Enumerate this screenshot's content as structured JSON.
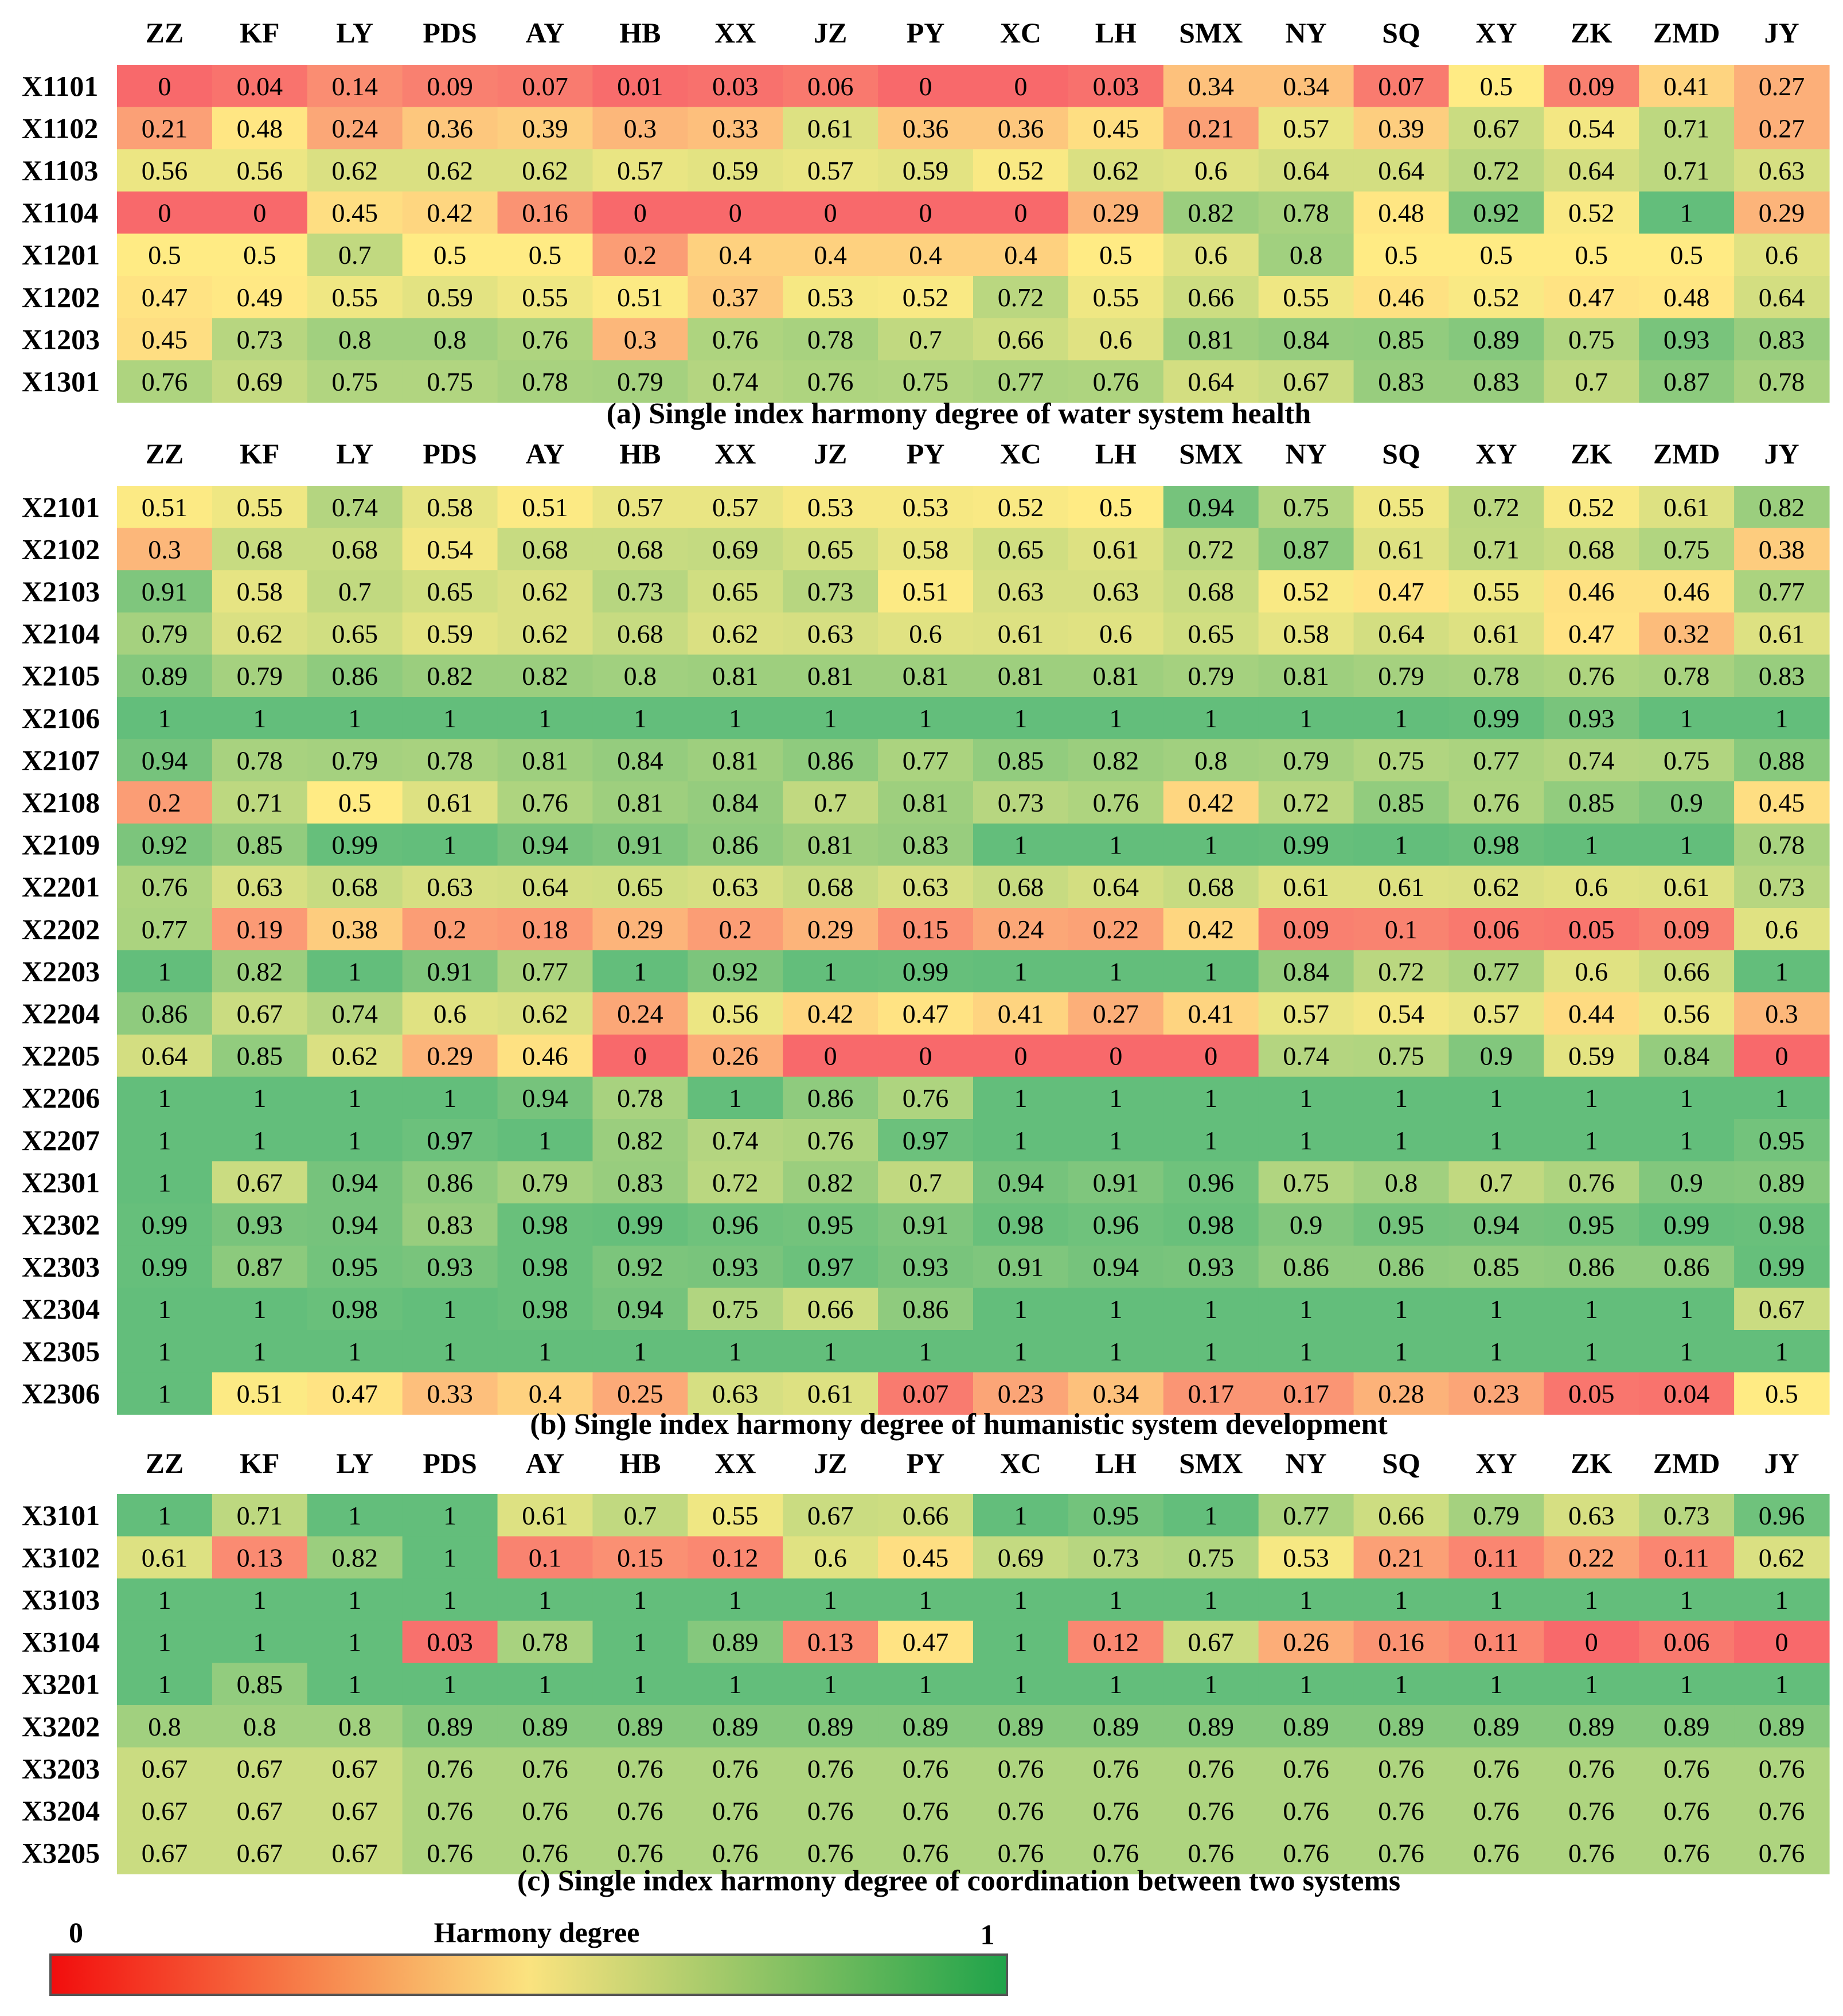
{
  "columns": [
    "ZZ",
    "KF",
    "LY",
    "PDS",
    "AY",
    "HB",
    "XX",
    "JZ",
    "PY",
    "XC",
    "LH",
    "SMX",
    "NY",
    "SQ",
    "XY",
    "ZK",
    "ZMD",
    "JY"
  ],
  "legend": {
    "min_label": "0",
    "max_label": "1",
    "title": "Harmony degree",
    "colors": [
      "#f20d0d",
      "#fbe37f",
      "#1fa34a"
    ]
  },
  "cell_colors": {
    "low": "#f8696b",
    "mid": "#ffeb84",
    "high": "#63be7b"
  },
  "chart_data": [
    {
      "type": "heatmap",
      "title": "(a) Single index harmony degree of water system health",
      "rows": [
        "X1101",
        "X1102",
        "X1103",
        "X1104",
        "X1201",
        "X1202",
        "X1203",
        "X1301"
      ],
      "values": [
        [
          0,
          0.04,
          0.14,
          0.09,
          0.07,
          0.01,
          0.03,
          0.06,
          0,
          0,
          0.03,
          0.34,
          0.34,
          0.07,
          0.5,
          0.09,
          0.41,
          0.27
        ],
        [
          0.21,
          0.48,
          0.24,
          0.36,
          0.39,
          0.3,
          0.33,
          0.61,
          0.36,
          0.36,
          0.45,
          0.21,
          0.57,
          0.39,
          0.67,
          0.54,
          0.71,
          0.27
        ],
        [
          0.56,
          0.56,
          0.62,
          0.62,
          0.62,
          0.57,
          0.59,
          0.57,
          0.59,
          0.52,
          0.62,
          0.6,
          0.64,
          0.64,
          0.72,
          0.64,
          0.71,
          0.63
        ],
        [
          0,
          0,
          0.45,
          0.42,
          0.16,
          0,
          0,
          0,
          0,
          0,
          0.29,
          0.82,
          0.78,
          0.48,
          0.92,
          0.52,
          1,
          0.29
        ],
        [
          0.5,
          0.5,
          0.7,
          0.5,
          0.5,
          0.2,
          0.4,
          0.4,
          0.4,
          0.4,
          0.5,
          0.6,
          0.8,
          0.5,
          0.5,
          0.5,
          0.5,
          0.6
        ],
        [
          0.47,
          0.49,
          0.55,
          0.59,
          0.55,
          0.51,
          0.37,
          0.53,
          0.52,
          0.72,
          0.55,
          0.66,
          0.55,
          0.46,
          0.52,
          0.47,
          0.48,
          0.64
        ],
        [
          0.45,
          0.73,
          0.8,
          0.8,
          0.76,
          0.3,
          0.76,
          0.78,
          0.7,
          0.66,
          0.6,
          0.81,
          0.84,
          0.85,
          0.89,
          0.75,
          0.93,
          0.83
        ],
        [
          0.76,
          0.69,
          0.75,
          0.75,
          0.78,
          0.79,
          0.74,
          0.76,
          0.75,
          0.77,
          0.76,
          0.64,
          0.67,
          0.83,
          0.83,
          0.7,
          0.87,
          0.78
        ]
      ]
    },
    {
      "type": "heatmap",
      "title": "(b)  Single index harmony degree of humanistic system development",
      "rows": [
        "X2101",
        "X2102",
        "X2103",
        "X2104",
        "X2105",
        "X2106",
        "X2107",
        "X2108",
        "X2109",
        "X2201",
        "X2202",
        "X2203",
        "X2204",
        "X2205",
        "X2206",
        "X2207",
        "X2301",
        "X2302",
        "X2303",
        "X2304",
        "X2305",
        "X2306"
      ],
      "values": [
        [
          0.51,
          0.55,
          0.74,
          0.58,
          0.51,
          0.57,
          0.57,
          0.53,
          0.53,
          0.52,
          0.5,
          0.94,
          0.75,
          0.55,
          0.72,
          0.52,
          0.61,
          0.82
        ],
        [
          0.3,
          0.68,
          0.68,
          0.54,
          0.68,
          0.68,
          0.69,
          0.65,
          0.58,
          0.65,
          0.61,
          0.72,
          0.87,
          0.61,
          0.71,
          0.68,
          0.75,
          0.38
        ],
        [
          0.91,
          0.58,
          0.7,
          0.65,
          0.62,
          0.73,
          0.65,
          0.73,
          0.51,
          0.63,
          0.63,
          0.68,
          0.52,
          0.47,
          0.55,
          0.46,
          0.46,
          0.77
        ],
        [
          0.79,
          0.62,
          0.65,
          0.59,
          0.62,
          0.68,
          0.62,
          0.63,
          0.6,
          0.61,
          0.6,
          0.65,
          0.58,
          0.64,
          0.61,
          0.47,
          0.32,
          0.61
        ],
        [
          0.89,
          0.79,
          0.86,
          0.82,
          0.82,
          0.8,
          0.81,
          0.81,
          0.81,
          0.81,
          0.81,
          0.79,
          0.81,
          0.79,
          0.78,
          0.76,
          0.78,
          0.83
        ],
        [
          1,
          1,
          1,
          1,
          1,
          1,
          1,
          1,
          1,
          1,
          1,
          1,
          1,
          1,
          0.99,
          0.93,
          1,
          1
        ],
        [
          0.94,
          0.78,
          0.79,
          0.78,
          0.81,
          0.84,
          0.81,
          0.86,
          0.77,
          0.85,
          0.82,
          0.8,
          0.79,
          0.75,
          0.77,
          0.74,
          0.75,
          0.88
        ],
        [
          0.2,
          0.71,
          0.5,
          0.61,
          0.76,
          0.81,
          0.84,
          0.7,
          0.81,
          0.73,
          0.76,
          0.42,
          0.72,
          0.85,
          0.76,
          0.85,
          0.9,
          0.45
        ],
        [
          0.92,
          0.85,
          0.99,
          1,
          0.94,
          0.91,
          0.86,
          0.81,
          0.83,
          1,
          1,
          1,
          0.99,
          1,
          0.98,
          1,
          1,
          0.78
        ],
        [
          0.76,
          0.63,
          0.68,
          0.63,
          0.64,
          0.65,
          0.63,
          0.68,
          0.63,
          0.68,
          0.64,
          0.68,
          0.61,
          0.61,
          0.62,
          0.6,
          0.61,
          0.73
        ],
        [
          0.77,
          0.19,
          0.38,
          0.2,
          0.18,
          0.29,
          0.2,
          0.29,
          0.15,
          0.24,
          0.22,
          0.42,
          0.09,
          0.1,
          0.06,
          0.05,
          0.09,
          0.6
        ],
        [
          1,
          0.82,
          1,
          0.91,
          0.77,
          1,
          0.92,
          1,
          0.99,
          1,
          1,
          1,
          0.84,
          0.72,
          0.77,
          0.6,
          0.66,
          1
        ],
        [
          0.86,
          0.67,
          0.74,
          0.6,
          0.62,
          0.24,
          0.56,
          0.42,
          0.47,
          0.41,
          0.27,
          0.41,
          0.57,
          0.54,
          0.57,
          0.44,
          0.56,
          0.3
        ],
        [
          0.64,
          0.85,
          0.62,
          0.29,
          0.46,
          0,
          0.26,
          0,
          0,
          0,
          0,
          0,
          0.74,
          0.75,
          0.9,
          0.59,
          0.84,
          0
        ],
        [
          1,
          1,
          1,
          1,
          0.94,
          0.78,
          1,
          0.86,
          0.76,
          1,
          1,
          1,
          1,
          1,
          1,
          1,
          1,
          1
        ],
        [
          1,
          1,
          1,
          0.97,
          1,
          0.82,
          0.74,
          0.76,
          0.97,
          1,
          1,
          1,
          1,
          1,
          1,
          1,
          1,
          0.95
        ],
        [
          1,
          0.67,
          0.94,
          0.86,
          0.79,
          0.83,
          0.72,
          0.82,
          0.7,
          0.94,
          0.91,
          0.96,
          0.75,
          0.8,
          0.7,
          0.76,
          0.9,
          0.89
        ],
        [
          0.99,
          0.93,
          0.94,
          0.83,
          0.98,
          0.99,
          0.96,
          0.95,
          0.91,
          0.98,
          0.96,
          0.98,
          0.9,
          0.95,
          0.94,
          0.95,
          0.99,
          0.98
        ],
        [
          0.99,
          0.87,
          0.95,
          0.93,
          0.98,
          0.92,
          0.93,
          0.97,
          0.93,
          0.91,
          0.94,
          0.93,
          0.86,
          0.86,
          0.85,
          0.86,
          0.86,
          0.99
        ],
        [
          1,
          1,
          0.98,
          1,
          0.98,
          0.94,
          0.75,
          0.66,
          0.86,
          1,
          1,
          1,
          1,
          1,
          1,
          1,
          1,
          0.67
        ],
        [
          1,
          1,
          1,
          1,
          1,
          1,
          1,
          1,
          1,
          1,
          1,
          1,
          1,
          1,
          1,
          1,
          1,
          1
        ],
        [
          1,
          0.51,
          0.47,
          0.33,
          0.4,
          0.25,
          0.63,
          0.61,
          0.07,
          0.23,
          0.34,
          0.17,
          0.17,
          0.28,
          0.23,
          0.05,
          0.04,
          0.5
        ]
      ]
    },
    {
      "type": "heatmap",
      "title": "(c) Single index harmony degree of coordination between two systems",
      "rows": [
        "X3101",
        "X3102",
        "X3103",
        "X3104",
        "X3201",
        "X3202",
        "X3203",
        "X3204",
        "X3205"
      ],
      "values": [
        [
          1,
          0.71,
          1,
          1,
          0.61,
          0.7,
          0.55,
          0.67,
          0.66,
          1,
          0.95,
          1,
          0.77,
          0.66,
          0.79,
          0.63,
          0.73,
          0.96
        ],
        [
          0.61,
          0.13,
          0.82,
          1,
          0.1,
          0.15,
          0.12,
          0.6,
          0.45,
          0.69,
          0.73,
          0.75,
          0.53,
          0.21,
          0.11,
          0.22,
          0.11,
          0.62
        ],
        [
          1,
          1,
          1,
          1,
          1,
          1,
          1,
          1,
          1,
          1,
          1,
          1,
          1,
          1,
          1,
          1,
          1,
          1
        ],
        [
          1,
          1,
          1,
          0.03,
          0.78,
          1,
          0.89,
          0.13,
          0.47,
          1,
          0.12,
          0.67,
          0.26,
          0.16,
          0.11,
          0,
          0.06,
          0
        ],
        [
          1,
          0.85,
          1,
          1,
          1,
          1,
          1,
          1,
          1,
          1,
          1,
          1,
          1,
          1,
          1,
          1,
          1,
          1
        ],
        [
          0.8,
          0.8,
          0.8,
          0.89,
          0.89,
          0.89,
          0.89,
          0.89,
          0.89,
          0.89,
          0.89,
          0.89,
          0.89,
          0.89,
          0.89,
          0.89,
          0.89,
          0.89
        ],
        [
          0.67,
          0.67,
          0.67,
          0.76,
          0.76,
          0.76,
          0.76,
          0.76,
          0.76,
          0.76,
          0.76,
          0.76,
          0.76,
          0.76,
          0.76,
          0.76,
          0.76,
          0.76
        ],
        [
          0.67,
          0.67,
          0.67,
          0.76,
          0.76,
          0.76,
          0.76,
          0.76,
          0.76,
          0.76,
          0.76,
          0.76,
          0.76,
          0.76,
          0.76,
          0.76,
          0.76,
          0.76
        ],
        [
          0.67,
          0.67,
          0.67,
          0.76,
          0.76,
          0.76,
          0.76,
          0.76,
          0.76,
          0.76,
          0.76,
          0.76,
          0.76,
          0.76,
          0.76,
          0.76,
          0.76,
          0.76
        ]
      ]
    }
  ]
}
